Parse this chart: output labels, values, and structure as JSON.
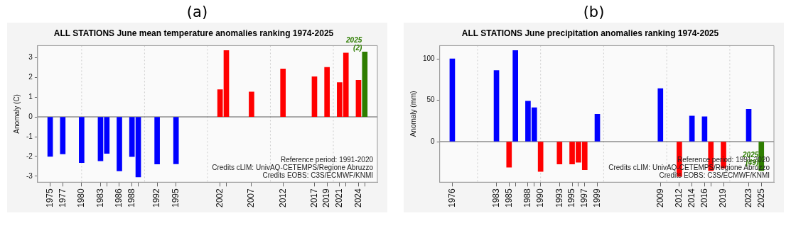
{
  "chart_data": [
    {
      "type": "bar",
      "subtitle": "(a)",
      "title": "ALL STATIONS June mean temperature anomalies ranking 1974-2025",
      "ylabel": "Anomaly (C)",
      "x": [
        1975,
        1977,
        1980,
        1983,
        1984,
        1986,
        1988,
        1989,
        1992,
        1995,
        2002,
        2003,
        2007,
        2012,
        2017,
        2019,
        2021,
        2022,
        2024,
        2025
      ],
      "values": [
        -2.0,
        -1.87,
        -2.31,
        -2.22,
        -1.85,
        -2.73,
        -2.01,
        -3.04,
        -2.38,
        -2.37,
        1.38,
        3.35,
        1.26,
        2.42,
        2.03,
        2.5,
        1.73,
        3.23,
        1.85,
        3.28
      ],
      "colors": [
        "#0000ff",
        "#0000ff",
        "#0000ff",
        "#0000ff",
        "#0000ff",
        "#0000ff",
        "#0000ff",
        "#0000ff",
        "#0000ff",
        "#0000ff",
        "#ff0000",
        "#ff0000",
        "#ff0000",
        "#ff0000",
        "#ff0000",
        "#ff0000",
        "#ff0000",
        "#ff0000",
        "#ff0000",
        "#2e7d00"
      ],
      "xlim": [
        1973,
        2027
      ],
      "xticks": [
        1975,
        1977,
        1980,
        1983,
        {
          "value": 1984,
          "label": null
        },
        1986,
        1988,
        {
          "value": 1989,
          "label": null
        },
        1992,
        1995,
        2002,
        {
          "value": 2003,
          "label": null
        },
        2007,
        2012,
        2017,
        2019,
        2021,
        {
          "value": 2022,
          "label": null
        },
        2024,
        {
          "value": 2025,
          "label": null
        }
      ],
      "ylim": [
        -3.3,
        3.6
      ],
      "yticks": [
        -3,
        -2,
        -1,
        0,
        1,
        2,
        3
      ],
      "grid": true,
      "legend": false,
      "ref_lines": [
        {
          "axis": "y",
          "value": 0,
          "color": "#555555"
        }
      ],
      "annotations": [
        {
          "text": "2025\n(2)",
          "x": 2025,
          "y": 3.28
        },
        "Reference period: 1991-2020",
        "Credits cLIM: UnivAQ-CETEMPS/Regione Abruzzo",
        "Credits EOBS: C3S/ECMWF/KNMI"
      ]
    },
    {
      "type": "bar",
      "subtitle": "(b)",
      "title": "ALL STATIONS June precipitation anomalies ranking 1974-2025",
      "ylabel": "Anomaly (mm)",
      "x": [
        1976,
        1983,
        1985,
        1986,
        1988,
        1989,
        1990,
        1993,
        1995,
        1996,
        1997,
        1999,
        2009,
        2012,
        2014,
        2016,
        2017,
        2019,
        2023,
        2025
      ],
      "values": [
        100,
        86,
        -31,
        110,
        49,
        41,
        -36,
        -27,
        -27,
        -25,
        -34,
        33,
        64,
        -42,
        31,
        30,
        -35,
        -32,
        39,
        -35
      ],
      "colors": [
        "#0000ff",
        "#0000ff",
        "#ff0000",
        "#0000ff",
        "#0000ff",
        "#0000ff",
        "#ff0000",
        "#ff0000",
        "#ff0000",
        "#ff0000",
        "#ff0000",
        "#0000ff",
        "#0000ff",
        "#ff0000",
        "#0000ff",
        "#0000ff",
        "#ff0000",
        "#ff0000",
        "#0000ff",
        "#2e7d00"
      ],
      "xlim": [
        1974,
        2027
      ],
      "xticks": [
        1976,
        1983,
        1985,
        {
          "value": 1986,
          "label": null
        },
        1988,
        {
          "value": 1989,
          "label": null
        },
        1990,
        1993,
        1995,
        {
          "value": 1996,
          "label": null
        },
        1997,
        1999,
        2009,
        2012,
        2014,
        2016,
        {
          "value": 2017,
          "label": null
        },
        2019,
        2023,
        2025
      ],
      "ylim": [
        -49,
        116
      ],
      "yticks": [
        0,
        50,
        100
      ],
      "grid": true,
      "legend": false,
      "ref_lines": [
        {
          "axis": "y",
          "value": 0,
          "color": "#555555"
        }
      ],
      "annotations": [
        {
          "text": "2025\n(49)",
          "x": 2025,
          "y": -30
        },
        "Reference period: 1991-2020",
        "Credits cLIM: UnivAQ-CETEMPS/Regione Abruzzo",
        "Credits EOBS: C3S/ECMWF/KNMI"
      ]
    }
  ]
}
